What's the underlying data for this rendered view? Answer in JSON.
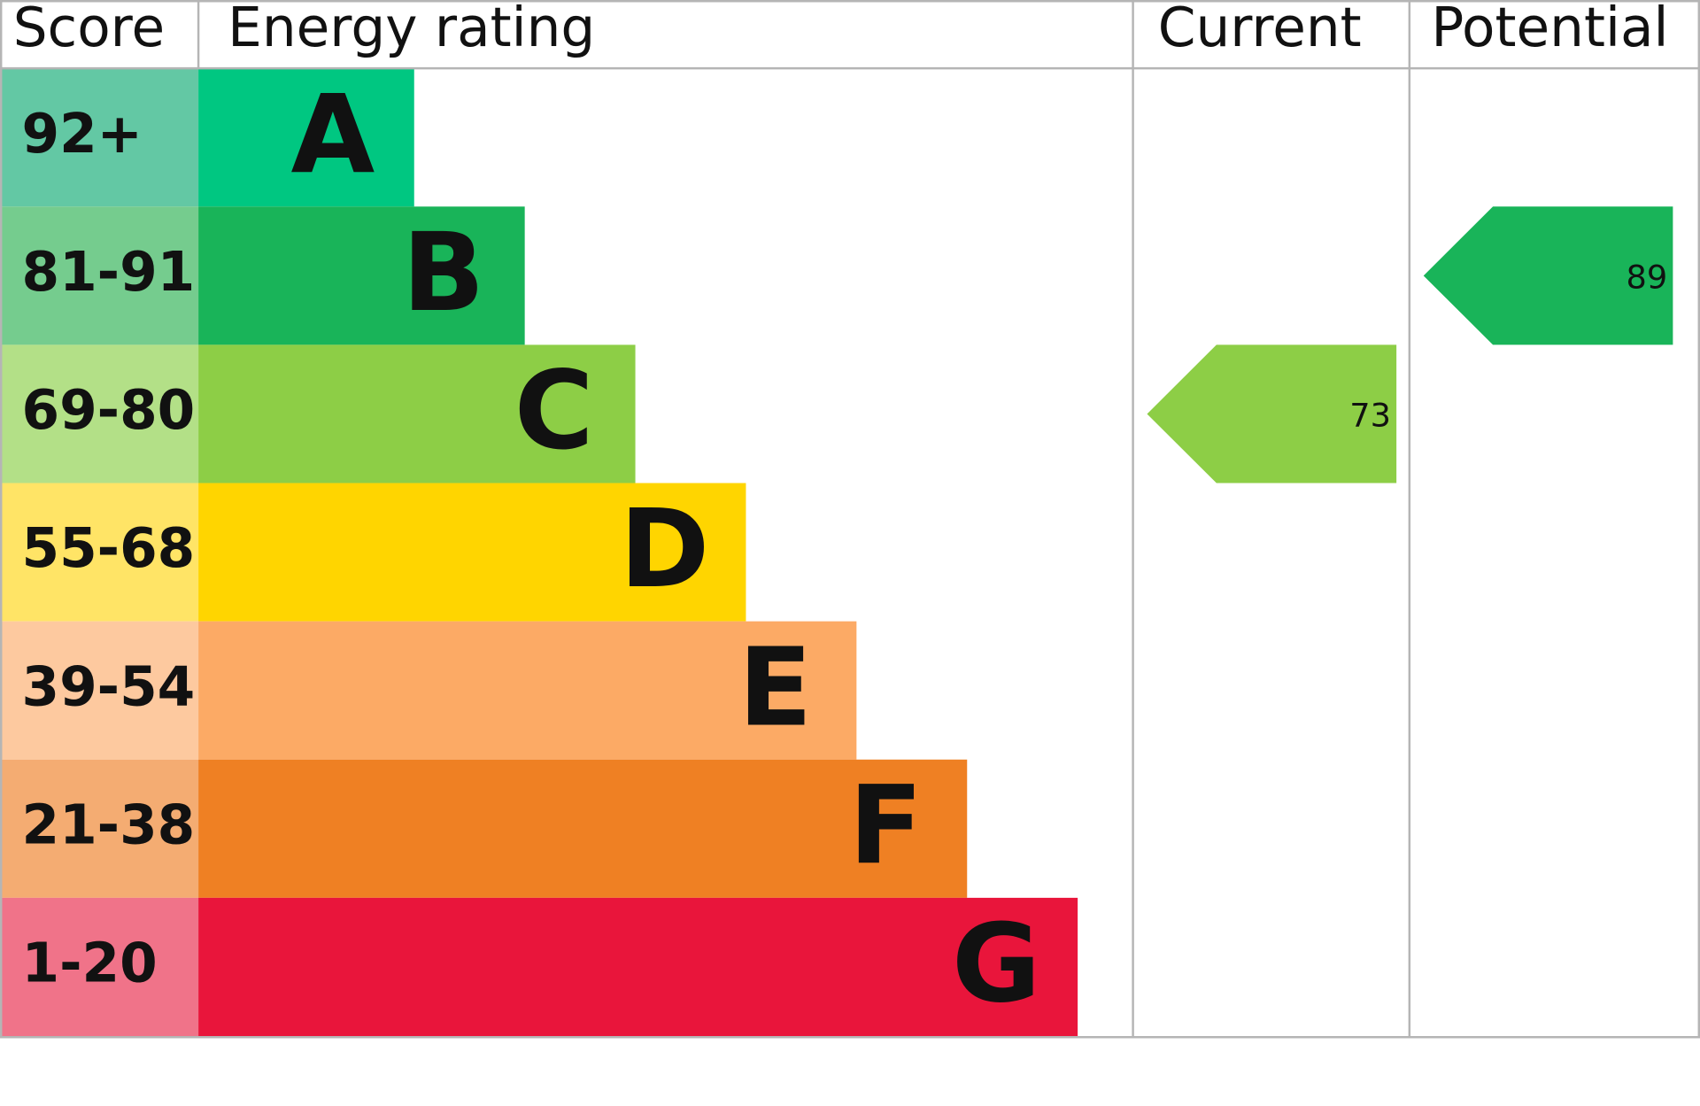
{
  "chart_data": {
    "type": "epc",
    "headers": [
      "Score",
      "Energy rating",
      "Current",
      "Potential"
    ],
    "bands": [
      {
        "score": "92+",
        "letter": "A",
        "color": "#00c781",
        "score_color": "#63c8a4"
      },
      {
        "score": "81-91",
        "letter": "B",
        "color": "#19b459",
        "score_color": "#75cc8e"
      },
      {
        "score": "69-80",
        "letter": "C",
        "color": "#8dce46",
        "score_color": "#b3e087"
      },
      {
        "score": "55-68",
        "letter": "D",
        "color": "#ffd500",
        "score_color": "#ffe466"
      },
      {
        "score": "39-54",
        "letter": "E",
        "color": "#fcaa65",
        "score_color": "#fdc99f"
      },
      {
        "score": "21-38",
        "letter": "F",
        "color": "#ef8023",
        "score_color": "#f4ac72"
      },
      {
        "score": "1-20",
        "letter": "G",
        "color": "#e9153b",
        "score_color": "#f07389"
      }
    ],
    "current": 73,
    "potential": 89
  }
}
